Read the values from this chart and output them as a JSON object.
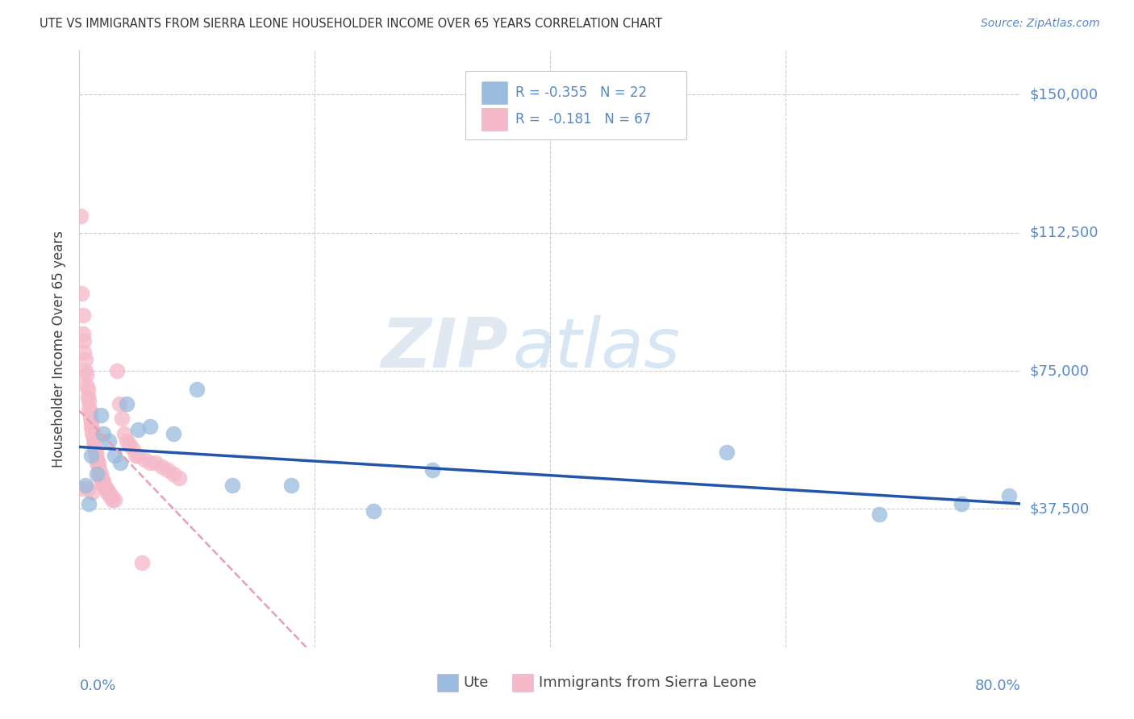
{
  "title": "UTE VS IMMIGRANTS FROM SIERRA LEONE HOUSEHOLDER INCOME OVER 65 YEARS CORRELATION CHART",
  "source": "Source: ZipAtlas.com",
  "ylabel": "Householder Income Over 65 years",
  "ytick_labels": [
    "$37,500",
    "$75,000",
    "$112,500",
    "$150,000"
  ],
  "ytick_values": [
    37500,
    75000,
    112500,
    150000
  ],
  "ylim": [
    0,
    162000
  ],
  "xlim": [
    0.0,
    0.8
  ],
  "watermark_zip": "ZIP",
  "watermark_atlas": "atlas",
  "legend_ute_R": "-0.355",
  "legend_ute_N": "22",
  "legend_sl_R": "-0.181",
  "legend_sl_N": "67",
  "ute_line_color": "#2255aa",
  "sl_line_color": "#e8a0b0",
  "scatter_ute_color": "#99bbdd",
  "scatter_sl_color": "#f5b8c8",
  "grid_color": "#cccccc",
  "background_color": "#ffffff",
  "ute_scatter_x": [
    0.005,
    0.008,
    0.01,
    0.015,
    0.018,
    0.02,
    0.025,
    0.03,
    0.035,
    0.04,
    0.05,
    0.06,
    0.08,
    0.1,
    0.13,
    0.18,
    0.25,
    0.3,
    0.55,
    0.68,
    0.75,
    0.79
  ],
  "ute_scatter_y": [
    44000,
    39000,
    52000,
    47000,
    63000,
    58000,
    56000,
    52000,
    50000,
    66000,
    59000,
    60000,
    58000,
    70000,
    44000,
    44000,
    37000,
    48000,
    53000,
    36000,
    39000,
    41000
  ],
  "sl_scatter_x": [
    0.001,
    0.002,
    0.003,
    0.003,
    0.004,
    0.004,
    0.005,
    0.005,
    0.006,
    0.006,
    0.007,
    0.007,
    0.008,
    0.008,
    0.009,
    0.009,
    0.01,
    0.01,
    0.011,
    0.011,
    0.012,
    0.012,
    0.013,
    0.013,
    0.014,
    0.014,
    0.015,
    0.015,
    0.016,
    0.016,
    0.017,
    0.017,
    0.018,
    0.018,
    0.019,
    0.019,
    0.02,
    0.02,
    0.021,
    0.022,
    0.023,
    0.024,
    0.025,
    0.026,
    0.027,
    0.028,
    0.03,
    0.032,
    0.034,
    0.036,
    0.038,
    0.04,
    0.042,
    0.045,
    0.048,
    0.05,
    0.055,
    0.06,
    0.065,
    0.07,
    0.075,
    0.08,
    0.085,
    0.002,
    0.007,
    0.011,
    0.053
  ],
  "sl_scatter_y": [
    117000,
    96000,
    90000,
    85000,
    83000,
    80000,
    78000,
    75000,
    74000,
    71000,
    70000,
    68000,
    67000,
    65000,
    64000,
    62000,
    61000,
    60000,
    59000,
    58000,
    57000,
    56000,
    55000,
    54000,
    53000,
    52000,
    51000,
    50000,
    50000,
    49000,
    48000,
    47000,
    47000,
    46000,
    46000,
    45000,
    45000,
    44000,
    44000,
    43000,
    43000,
    42000,
    42000,
    41000,
    41000,
    40000,
    40000,
    75000,
    66000,
    62000,
    58000,
    56000,
    55000,
    54000,
    52000,
    52000,
    51000,
    50000,
    50000,
    49000,
    48000,
    47000,
    46000,
    43000,
    43000,
    42000,
    23000
  ]
}
